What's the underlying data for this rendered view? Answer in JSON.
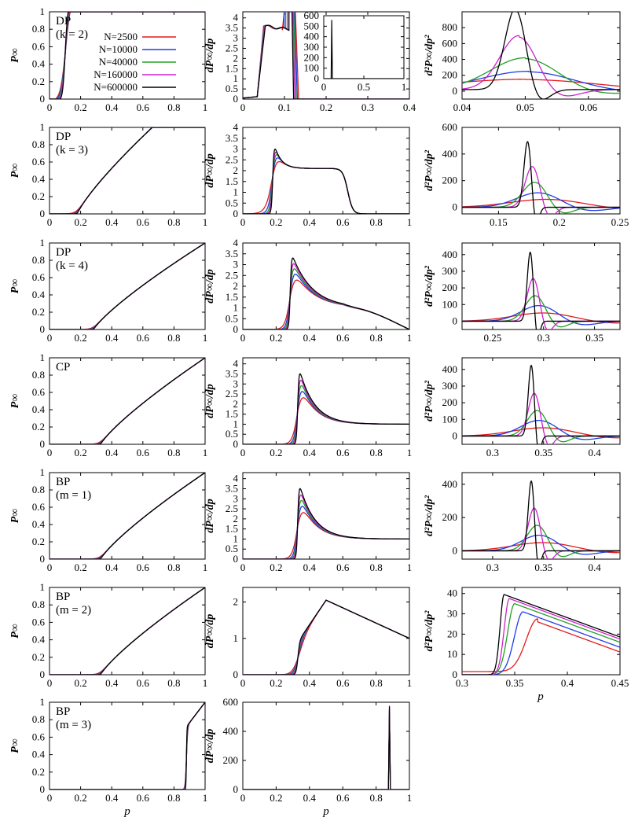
{
  "legend": {
    "prefix": "N=",
    "entries": [
      {
        "label": "2500",
        "color": "#e41a1c"
      },
      {
        "label": "10000",
        "color": "#1f3ee6"
      },
      {
        "label": "40000",
        "color": "#22a022"
      },
      {
        "label": "160000",
        "color": "#cc22cc"
      },
      {
        "label": "600000",
        "color": "#000000"
      }
    ]
  },
  "xlabel": "p",
  "ylabels": {
    "col1": "P∞",
    "col2": "dP∞/dp",
    "col3": "d²P∞/dp²"
  },
  "rows": [
    {
      "name": "DP",
      "param": "(k = 2)"
    },
    {
      "name": "DP",
      "param": "(k = 3)"
    },
    {
      "name": "DP",
      "param": "(k = 4)"
    },
    {
      "name": "CP",
      "param": ""
    },
    {
      "name": "BP",
      "param": "(m = 1)"
    },
    {
      "name": "BP",
      "param": "(m = 2)"
    },
    {
      "name": "BP",
      "param": "(m = 3)"
    }
  ],
  "chart_data": [
    {
      "type": "line",
      "row": 1,
      "col": 1,
      "xlim": [
        0,
        1
      ],
      "ylim": [
        0,
        1
      ],
      "xticks": [
        "0",
        "0.2",
        "0.4",
        "0.6",
        "0.8",
        "1"
      ],
      "yticks": [
        "0",
        "0.2",
        "0.4",
        "0.6",
        "0.8",
        "1"
      ],
      "curve": "sigmoid",
      "pc": 0.1,
      "series_note": "all N overlap"
    },
    {
      "type": "line",
      "row": 1,
      "col": 2,
      "xlim": [
        0,
        0.4
      ],
      "ylim": [
        0,
        4.3
      ],
      "xticks": [
        "0",
        "0.1",
        "0.2",
        "0.3",
        "0.4"
      ],
      "yticks": [
        "0",
        "0.5",
        "1",
        "1.5",
        "2",
        "2.5",
        "3",
        "3.5",
        "4"
      ],
      "pc": 0.1,
      "inset": {
        "xlim": [
          0,
          1
        ],
        "ylim": [
          0,
          600
        ],
        "xticks": [
          "0",
          "0.5",
          "1"
        ],
        "yticks": [
          "0",
          "100",
          "200",
          "300",
          "400",
          "500",
          "600"
        ],
        "spike_x": 0.1,
        "spike_y": 560
      }
    },
    {
      "type": "line",
      "row": 1,
      "col": 3,
      "xlim": [
        0.04,
        0.065
      ],
      "ylim": [
        -100,
        1000
      ],
      "xticks": [
        "0.04",
        "0.05",
        "0.06"
      ],
      "yticks": [
        "0",
        "200",
        "400",
        "600",
        "800"
      ],
      "peaks": [
        [
          0.05,
          130,
          0.012
        ],
        [
          0.0505,
          230,
          0.0075
        ],
        [
          0.05,
          400,
          0.0055
        ],
        [
          0.049,
          680,
          0.003
        ],
        [
          0.0485,
          1030,
          0.0017
        ]
      ]
    },
    {
      "type": "line",
      "row": 2,
      "col": 1,
      "xlim": [
        0,
        1
      ],
      "ylim": [
        0,
        1
      ],
      "xticks": [
        "0",
        "0.2",
        "0.4",
        "0.6",
        "0.8",
        "1"
      ],
      "yticks": [
        "0",
        "0.2",
        "0.4",
        "0.6",
        "0.8",
        "1"
      ],
      "pc": 0.18
    },
    {
      "type": "line",
      "row": 2,
      "col": 2,
      "xlim": [
        0,
        1
      ],
      "ylim": [
        0,
        4
      ],
      "xticks": [
        "0",
        "0.2",
        "0.4",
        "0.6",
        "0.8",
        "1"
      ],
      "yticks": [
        "0",
        "0.5",
        "1",
        "1.5",
        "2",
        "2.5",
        "3",
        "3.5",
        "4"
      ],
      "pc": 0.18,
      "peak": 3.5,
      "plateau": 2.1
    },
    {
      "type": "line",
      "row": 2,
      "col": 3,
      "xlim": [
        0.12,
        0.25
      ],
      "ylim": [
        -50,
        600
      ],
      "xticks": [
        "0.15",
        "0.2",
        "0.25"
      ],
      "yticks": [
        "0",
        "200",
        "400",
        "600"
      ],
      "peaks": [
        [
          0.19,
          60,
          0.03
        ],
        [
          0.183,
          110,
          0.018
        ],
        [
          0.18,
          190,
          0.01
        ],
        [
          0.178,
          310,
          0.006
        ],
        [
          0.174,
          500,
          0.003
        ]
      ]
    },
    {
      "type": "line",
      "row": 3,
      "col": 1,
      "xlim": [
        0,
        1
      ],
      "ylim": [
        0,
        1
      ],
      "xticks": [
        "0",
        "0.2",
        "0.4",
        "0.6",
        "0.8",
        "1"
      ],
      "yticks": [
        "0",
        "0.2",
        "0.4",
        "0.6",
        "0.8",
        "1"
      ],
      "pc": 0.285
    },
    {
      "type": "line",
      "row": 3,
      "col": 2,
      "xlim": [
        0,
        1
      ],
      "ylim": [
        0,
        4
      ],
      "xticks": [
        "0",
        "0.2",
        "0.4",
        "0.6",
        "0.8",
        "1"
      ],
      "yticks": [
        "0",
        "0.5",
        "1",
        "1.5",
        "2",
        "2.5",
        "3",
        "3.5",
        "4"
      ],
      "pc": 0.285,
      "peak": 3.7
    },
    {
      "type": "line",
      "row": 3,
      "col": 3,
      "xlim": [
        0.22,
        0.375
      ],
      "ylim": [
        -50,
        470
      ],
      "xticks": [
        "0.25",
        "0.3",
        "0.35"
      ],
      "yticks": [
        "0",
        "100",
        "200",
        "300",
        "400"
      ],
      "peaks": [
        [
          0.3,
          50,
          0.03
        ],
        [
          0.296,
          95,
          0.018
        ],
        [
          0.292,
          155,
          0.01
        ],
        [
          0.29,
          260,
          0.006
        ],
        [
          0.287,
          420,
          0.003
        ]
      ]
    },
    {
      "type": "line",
      "row": 4,
      "col": 1,
      "xlim": [
        0,
        1
      ],
      "ylim": [
        0,
        1
      ],
      "xticks": [
        "0",
        "0.2",
        "0.4",
        "0.6",
        "0.8",
        "1"
      ],
      "yticks": [
        "0",
        "0.2",
        "0.4",
        "0.6",
        "0.8",
        "1"
      ],
      "pc": 0.33
    },
    {
      "type": "line",
      "row": 4,
      "col": 2,
      "xlim": [
        0,
        1
      ],
      "ylim": [
        0,
        4.3
      ],
      "xticks": [
        "0",
        "0.2",
        "0.4",
        "0.6",
        "0.8",
        "1"
      ],
      "yticks": [
        "0",
        "0.5",
        "1",
        "1.5",
        "2",
        "2.5",
        "3",
        "3.5",
        "4"
      ],
      "pc": 0.33,
      "peak": 4.05
    },
    {
      "type": "line",
      "row": 4,
      "col": 3,
      "xlim": [
        0.27,
        0.425
      ],
      "ylim": [
        -50,
        470
      ],
      "xticks": [
        "0.3",
        "0.35",
        "0.4"
      ],
      "yticks": [
        "0",
        "100",
        "200",
        "300",
        "400"
      ],
      "peaks": [
        [
          0.35,
          50,
          0.03
        ],
        [
          0.346,
          95,
          0.018
        ],
        [
          0.344,
          155,
          0.01
        ],
        [
          0.341,
          260,
          0.006
        ],
        [
          0.338,
          430,
          0.003
        ]
      ]
    },
    {
      "type": "line",
      "row": 5,
      "col": 1,
      "xlim": [
        0,
        1
      ],
      "ylim": [
        0,
        1
      ],
      "xticks": [
        "0",
        "0.2",
        "0.4",
        "0.6",
        "0.8",
        "1"
      ],
      "yticks": [
        "0",
        "0.2",
        "0.4",
        "0.6",
        "0.8",
        "1"
      ],
      "pc": 0.33
    },
    {
      "type": "line",
      "row": 5,
      "col": 2,
      "xlim": [
        0,
        1
      ],
      "ylim": [
        0,
        4.3
      ],
      "xticks": [
        "0",
        "0.2",
        "0.4",
        "0.6",
        "0.8",
        "1"
      ],
      "yticks": [
        "0",
        "0.5",
        "1",
        "1.5",
        "2",
        "2.5",
        "3",
        "3.5",
        "4"
      ],
      "pc": 0.33,
      "peak": 4.05
    },
    {
      "type": "line",
      "row": 5,
      "col": 3,
      "xlim": [
        0.27,
        0.425
      ],
      "ylim": [
        -50,
        470
      ],
      "xticks": [
        "0.3",
        "0.35",
        "0.4"
      ],
      "yticks": [
        "0",
        "200",
        "400"
      ],
      "peaks": [
        [
          0.35,
          50,
          0.03
        ],
        [
          0.346,
          95,
          0.018
        ],
        [
          0.344,
          155,
          0.01
        ],
        [
          0.341,
          260,
          0.006
        ],
        [
          0.338,
          425,
          0.003
        ]
      ]
    },
    {
      "type": "line",
      "row": 6,
      "col": 1,
      "xlim": [
        0,
        1
      ],
      "ylim": [
        0,
        1
      ],
      "xticks": [
        "0",
        "0.2",
        "0.4",
        "0.6",
        "0.8",
        "1"
      ],
      "yticks": [
        "0",
        "0.2",
        "0.4",
        "0.6",
        "0.8",
        "1"
      ],
      "pc": 0.33
    },
    {
      "type": "line",
      "row": 6,
      "col": 2,
      "xlim": [
        0,
        1
      ],
      "ylim": [
        0,
        2.4
      ],
      "xticks": [
        "0",
        "0.2",
        "0.4",
        "0.6",
        "0.8",
        "1"
      ],
      "yticks": [
        "0",
        "1",
        "2"
      ],
      "pc": 0.33,
      "peak": 2.05
    },
    {
      "type": "line",
      "row": 6,
      "col": 3,
      "xlim": [
        0.3,
        0.45
      ],
      "ylim": [
        0,
        43
      ],
      "xticks": [
        "0.3",
        "0.35",
        "0.4",
        "0.45"
      ],
      "yticks": [
        "0",
        "10",
        "20",
        "30",
        "40"
      ],
      "peaks": [
        [
          0.372,
          26,
          0.02
        ],
        [
          0.358,
          31,
          0.015
        ],
        [
          0.35,
          35,
          0.012
        ],
        [
          0.345,
          37.5,
          0.009
        ],
        [
          0.34,
          39.5,
          0.007
        ]
      ]
    },
    {
      "type": "line",
      "row": 7,
      "col": 1,
      "xlim": [
        0,
        1
      ],
      "ylim": [
        0,
        1
      ],
      "xticks": [
        "0",
        "0.2",
        "0.4",
        "0.6",
        "0.8",
        "1"
      ],
      "yticks": [
        "0",
        "0.2",
        "0.4",
        "0.6",
        "0.8",
        "1"
      ],
      "pc": 0.88
    },
    {
      "type": "line",
      "row": 7,
      "col": 2,
      "xlim": [
        0,
        1
      ],
      "ylim": [
        0,
        600
      ],
      "xticks": [
        "0",
        "0.2",
        "0.4",
        "0.6",
        "0.8",
        "1"
      ],
      "yticks": [
        "0",
        "200",
        "400",
        "600"
      ],
      "spike_x": 0.88,
      "spike_y": 575
    }
  ]
}
